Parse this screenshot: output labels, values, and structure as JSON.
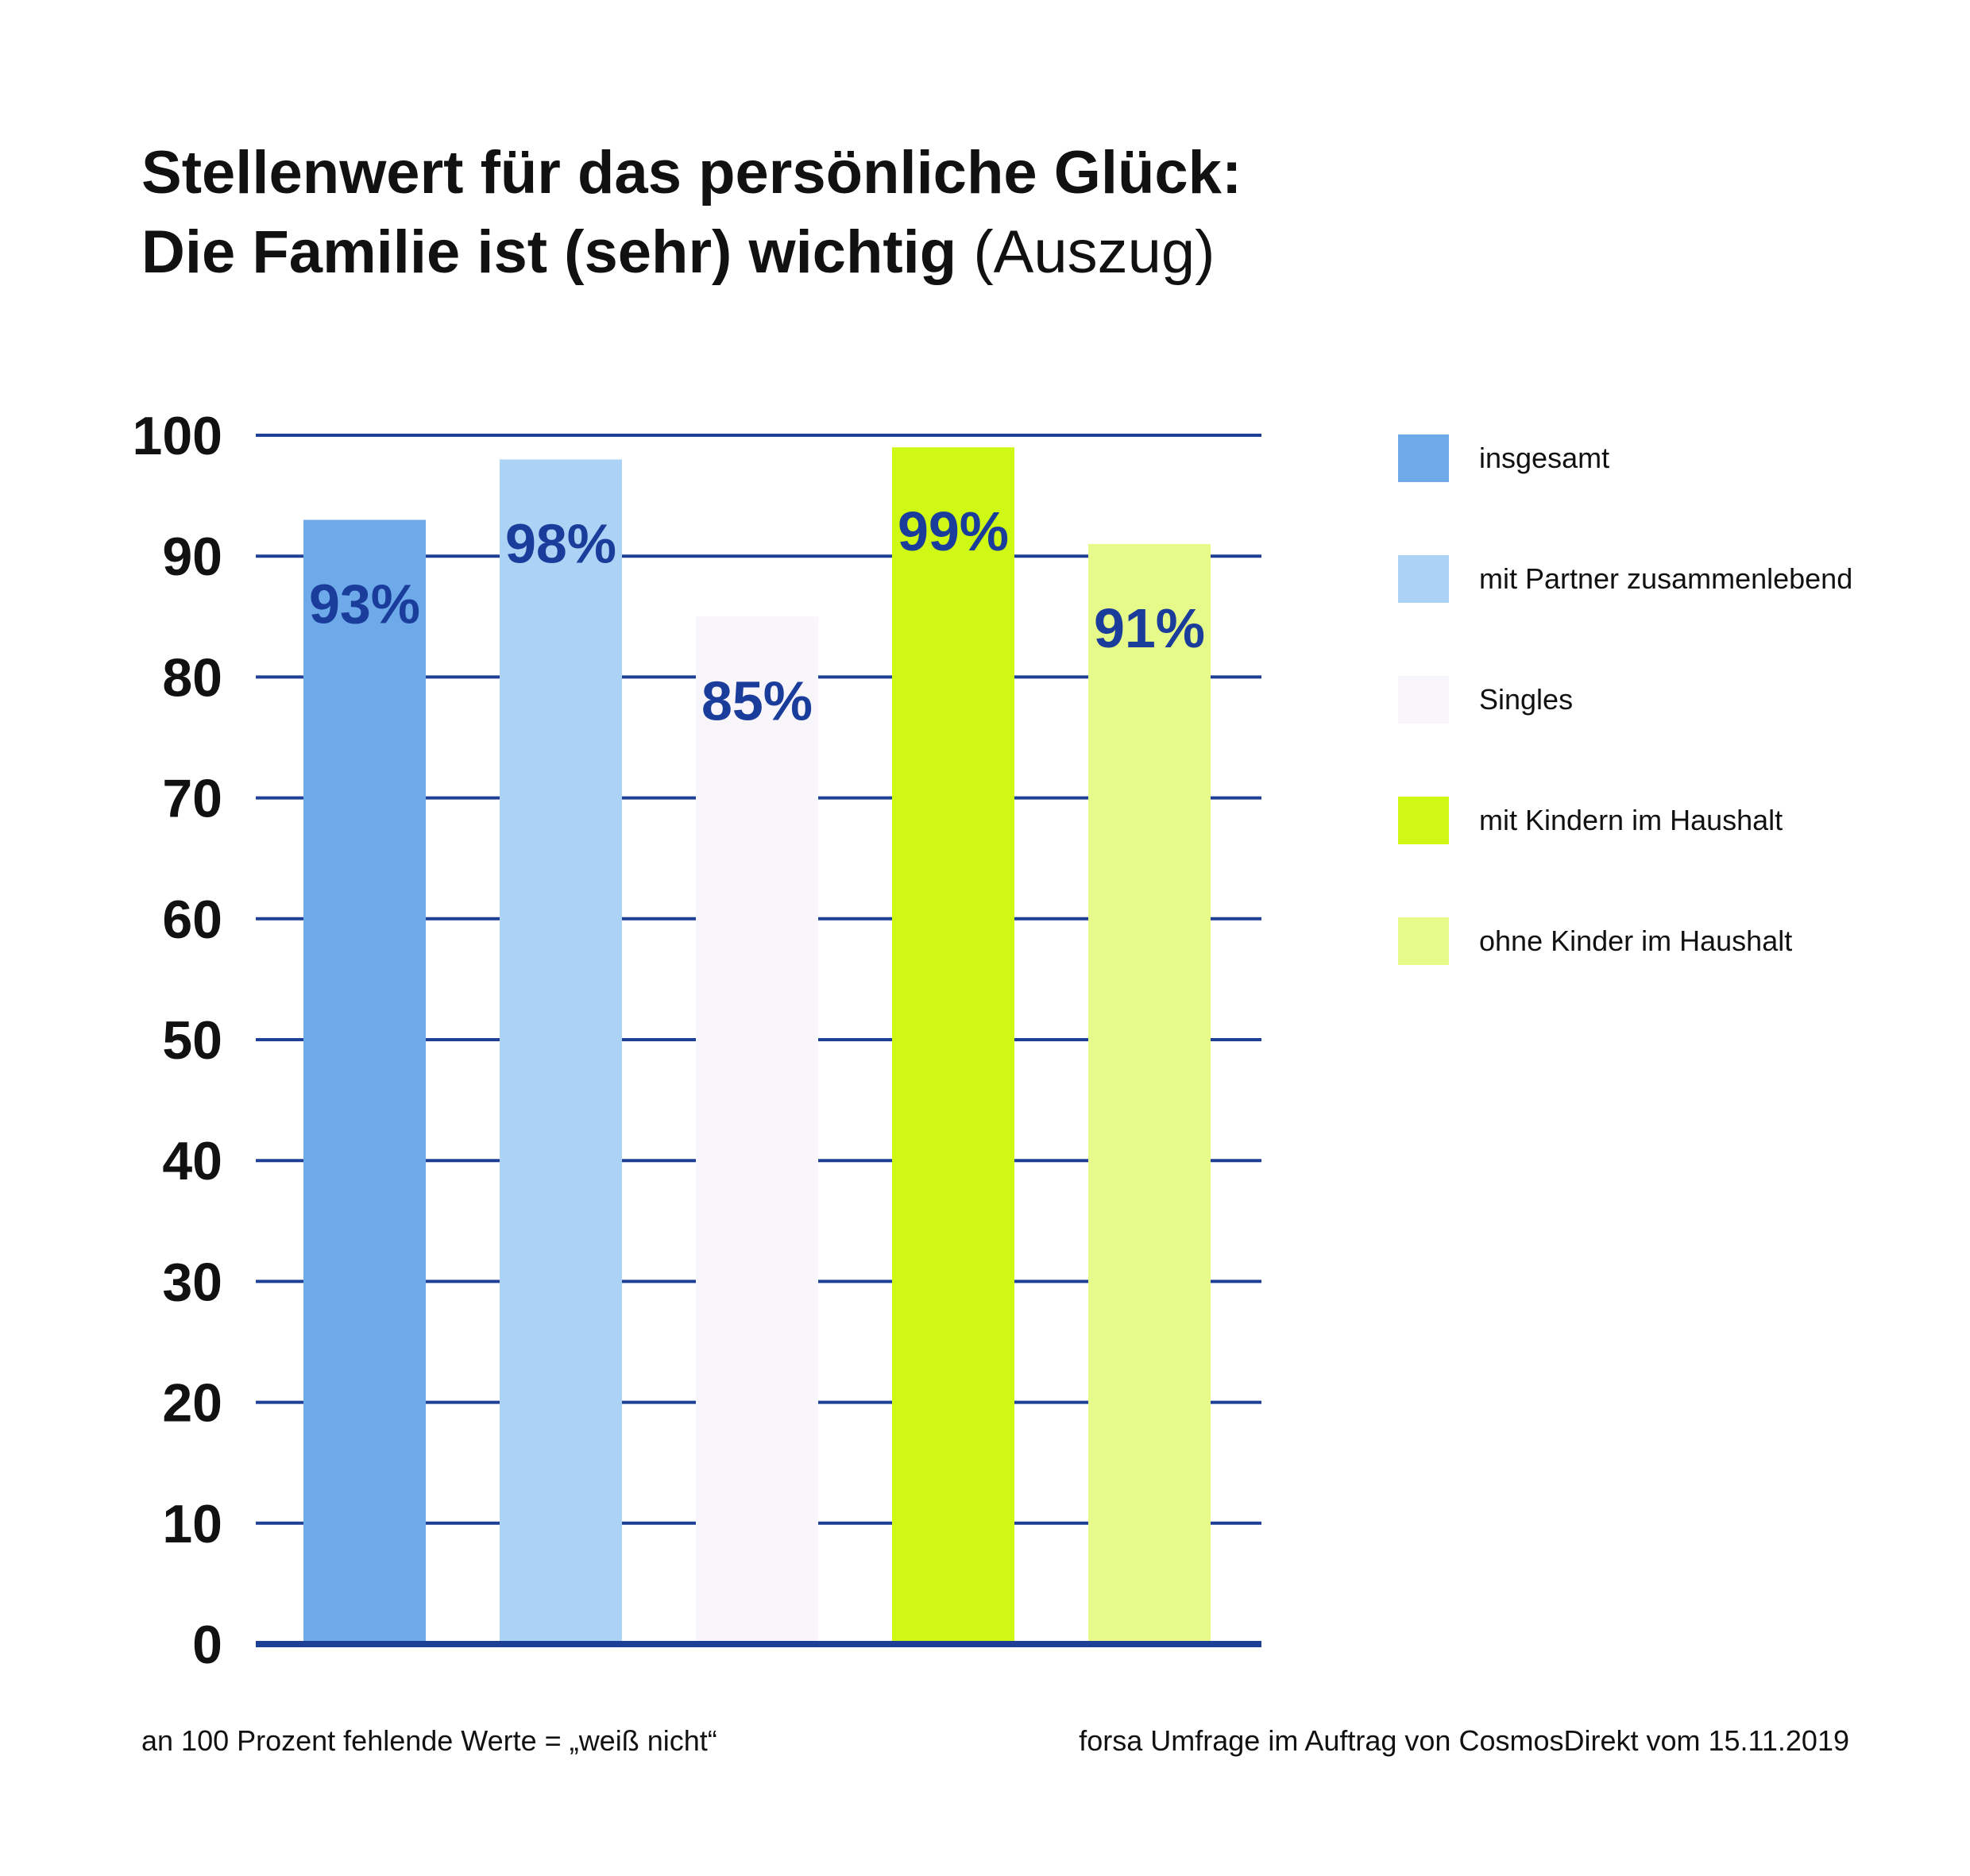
{
  "header": {
    "title_line1": "Stellenwert für das persönliche Glück:",
    "title_line2_bold": "Die Familie ist (sehr) wichtig",
    "title_line2_light": "(Auszug)"
  },
  "chart_data": {
    "type": "bar",
    "categories": [
      "insgesamt",
      "mit Partner zusammenlebend",
      "Singles",
      "mit Kindern im Haushalt",
      "ohne Kinder im Haushalt"
    ],
    "values": [
      93,
      98,
      85,
      99,
      91
    ],
    "value_labels": [
      "93%",
      "98%",
      "85%",
      "99%",
      "91%"
    ],
    "colors": [
      "#6eaaea",
      "#acd3f5",
      "#f9f6fb",
      "#cff915",
      "#e6fa8a"
    ],
    "ylim": [
      0,
      100
    ],
    "yticks": [
      0,
      10,
      20,
      30,
      40,
      50,
      60,
      70,
      80,
      90,
      100
    ],
    "ytick_labels": [
      "0",
      "10",
      "20",
      "30",
      "40",
      "50",
      "60",
      "70",
      "80",
      "90",
      "100"
    ],
    "grid": true,
    "grid_color": "#1e3f96",
    "value_label_color": "#1a3c9b",
    "legend_position": "right"
  },
  "legend": {
    "items": [
      {
        "label": "insgesamt",
        "color": "#6eaaea"
      },
      {
        "label": "mit Partner zusammenlebend",
        "color": "#acd3f5"
      },
      {
        "label": "Singles",
        "color": "#f9f6fb"
      },
      {
        "label": "mit Kindern im Haushalt",
        "color": "#cff915"
      },
      {
        "label": "ohne Kinder im Haushalt",
        "color": "#e6fa8a"
      }
    ]
  },
  "footer": {
    "note": "an 100 Prozent fehlende Werte = „weiß nicht“",
    "source": "forsa Umfrage im Auftrag von CosmosDirekt vom 15.11.2019"
  }
}
